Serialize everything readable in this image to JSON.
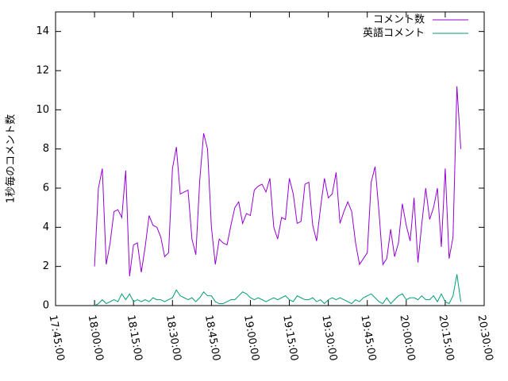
{
  "chart_data": {
    "type": "line",
    "y_label": "1秒毎のコメント数",
    "x": [
      "18:00:00",
      "18:01:30",
      "18:03:00",
      "18:04:30",
      "18:06:00",
      "18:07:30",
      "18:09:00",
      "18:10:30",
      "18:12:00",
      "18:13:30",
      "18:15:00",
      "18:16:30",
      "18:18:00",
      "18:19:30",
      "18:21:00",
      "18:22:30",
      "18:24:00",
      "18:25:30",
      "18:27:00",
      "18:28:30",
      "18:30:00",
      "18:31:30",
      "18:33:00",
      "18:34:30",
      "18:36:00",
      "18:37:30",
      "18:39:00",
      "18:40:30",
      "18:42:00",
      "18:43:30",
      "18:45:00",
      "18:46:30",
      "18:48:00",
      "18:49:30",
      "18:51:00",
      "18:52:30",
      "18:54:00",
      "18:55:30",
      "18:57:00",
      "18:58:30",
      "19:00:00",
      "19:01:30",
      "19:03:00",
      "19:04:30",
      "19:06:00",
      "19:07:30",
      "19:09:00",
      "19:10:30",
      "19:12:00",
      "19:13:30",
      "19:15:00",
      "19:16:30",
      "19:18:00",
      "19:19:30",
      "19:21:00",
      "19:22:30",
      "19:24:00",
      "19:25:30",
      "19:27:00",
      "19:28:30",
      "19:30:00",
      "19:31:30",
      "19:33:00",
      "19:34:30",
      "19:36:00",
      "19:37:30",
      "19:39:00",
      "19:40:30",
      "19:42:00",
      "19:43:30",
      "19:45:00",
      "19:46:30",
      "19:48:00",
      "19:49:30",
      "19:51:00",
      "19:52:30",
      "19:54:00",
      "19:55:30",
      "19:57:00",
      "19:58:30",
      "20:00:00",
      "20:01:30",
      "20:03:00",
      "20:04:30",
      "20:06:00",
      "20:07:30",
      "20:09:00",
      "20:10:30",
      "20:12:00",
      "20:13:30",
      "20:15:00",
      "20:16:30",
      "20:18:00",
      "20:19:30",
      "20:21:00"
    ],
    "series": [
      {
        "name": "コメント数",
        "color": "#9400d3",
        "values": [
          2,
          6,
          7,
          2.1,
          3.2,
          4.8,
          4.9,
          4.5,
          6.9,
          1.5,
          3.1,
          3.2,
          1.7,
          3,
          4.6,
          4.1,
          4,
          3.5,
          2.5,
          2.7,
          7,
          8.1,
          5.7,
          5.8,
          5.9,
          3.4,
          2.6,
          6.4,
          8.8,
          8,
          4,
          2.1,
          3.4,
          3.2,
          3.1,
          4.1,
          5,
          5.3,
          4.2,
          4.7,
          4.6,
          5.9,
          6.1,
          6.2,
          5.8,
          6.5,
          4,
          3.4,
          4.5,
          4.4,
          6.5,
          5.7,
          4.2,
          4.3,
          6.2,
          6.3,
          4.1,
          3.3,
          5,
          6.5,
          5.5,
          5.7,
          6.8,
          4.2,
          4.8,
          5.3,
          4.8,
          3.2,
          2.1,
          2.4,
          2.7,
          6.3,
          7.1,
          4.8,
          2.1,
          2.4,
          3.9,
          2.5,
          3.2,
          5.2,
          4.1,
          3.3,
          5.5,
          2.2,
          4.2,
          6,
          4.4,
          5,
          6,
          3,
          7,
          2.4,
          3.5,
          11.2,
          8
        ]
      },
      {
        "name": "英語コメント",
        "color": "#009e73",
        "values": [
          0,
          0.1,
          0.3,
          0.1,
          0.2,
          0.3,
          0.2,
          0.6,
          0.3,
          0.6,
          0.2,
          0.3,
          0.2,
          0.3,
          0.2,
          0.4,
          0.3,
          0.3,
          0.2,
          0.3,
          0.4,
          0.8,
          0.5,
          0.4,
          0.3,
          0.4,
          0.2,
          0.4,
          0.7,
          0.5,
          0.5,
          0.2,
          0.1,
          0.1,
          0.2,
          0.3,
          0.3,
          0.5,
          0.7,
          0.6,
          0.4,
          0.3,
          0.4,
          0.3,
          0.2,
          0.3,
          0.4,
          0.3,
          0.4,
          0.5,
          0.3,
          0.2,
          0.5,
          0.4,
          0.3,
          0.3,
          0.4,
          0.2,
          0.3,
          0.1,
          0.3,
          0.4,
          0.3,
          0.4,
          0.3,
          0.2,
          0.1,
          0.3,
          0.2,
          0.4,
          0.5,
          0.6,
          0.4,
          0.2,
          0.1,
          0.4,
          0.1,
          0.3,
          0.5,
          0.6,
          0.3,
          0.4,
          0.4,
          0.3,
          0.5,
          0.3,
          0.3,
          0.5,
          0.2,
          0.6,
          0.2,
          0.1,
          0.5,
          1.6,
          0.2
        ]
      }
    ],
    "xlim": [
      "17:45:00",
      "20:30:00"
    ],
    "xticks": [
      "17:45:00",
      "18:00:00",
      "18:15:00",
      "18:30:00",
      "18:45:00",
      "19:00:00",
      "19:15:00",
      "19:30:00",
      "19:45:00",
      "20:00:00",
      "20:15:00",
      "20:30:00"
    ],
    "ylim": [
      0,
      15
    ],
    "yticks": [
      0,
      2,
      4,
      6,
      8,
      10,
      12,
      14
    ],
    "grid": false,
    "legend": "top-right"
  }
}
